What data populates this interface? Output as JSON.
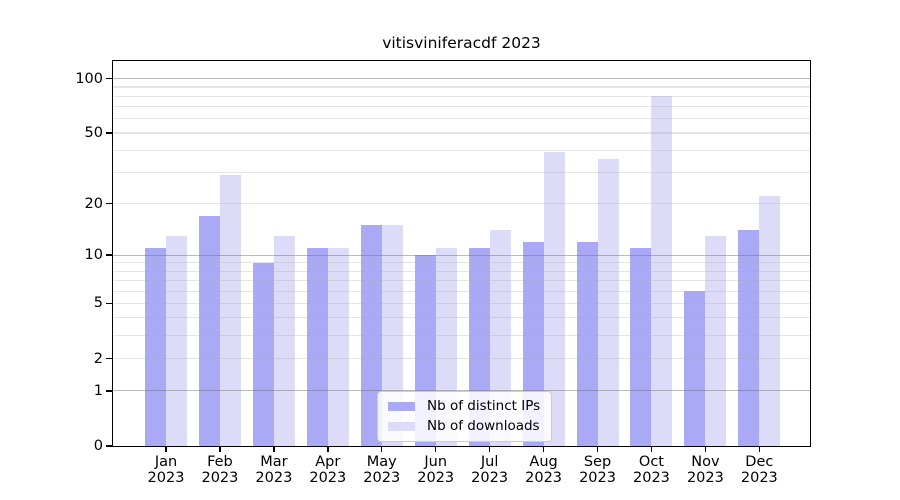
{
  "title": "vitisviniferacdf 2023",
  "legend": {
    "position": "lower center",
    "items": [
      {
        "label": "Nb of distinct IPs",
        "color": "#a9a9f6"
      },
      {
        "label": "Nb of downloads",
        "color": "#dcdcf9"
      }
    ]
  },
  "chart_data": {
    "type": "bar",
    "title": "vitisviniferacdf 2023",
    "categories": [
      "Jan 2023",
      "Feb 2023",
      "Mar 2023",
      "Apr 2023",
      "May 2023",
      "Jun 2023",
      "Jul 2023",
      "Aug 2023",
      "Sep 2023",
      "Oct 2023",
      "Nov 2023",
      "Dec 2023"
    ],
    "series": [
      {
        "name": "Nb of distinct IPs",
        "color": "#a9a9f6",
        "values": [
          11,
          17,
          9,
          11,
          15,
          10,
          11,
          12,
          12,
          11,
          6,
          14
        ]
      },
      {
        "name": "Nb of downloads",
        "color": "#dcdcf9",
        "values": [
          13,
          29,
          13,
          11,
          15,
          11,
          14,
          39,
          36,
          80,
          13,
          22
        ]
      }
    ],
    "xlabel": "",
    "ylabel": "",
    "yscale": "log1p",
    "ylim": [
      0,
      126
    ],
    "yticks": [
      0,
      1,
      2,
      5,
      10,
      20,
      50,
      100
    ],
    "grid": "on",
    "grid_major": [
      1,
      10,
      100
    ],
    "grid_minor": [
      2,
      3,
      4,
      5,
      6,
      7,
      8,
      9,
      20,
      30,
      40,
      50,
      60,
      70,
      80,
      90
    ],
    "legend_position": "lower center"
  },
  "colors": {
    "background": "#ffffff",
    "spine": "#000000",
    "text": "#000000",
    "grid_major": "#bcbcbc",
    "grid_minor": "#e5e5e5",
    "legend_border": "#cccccc",
    "legend_bg": "#ffffff"
  }
}
